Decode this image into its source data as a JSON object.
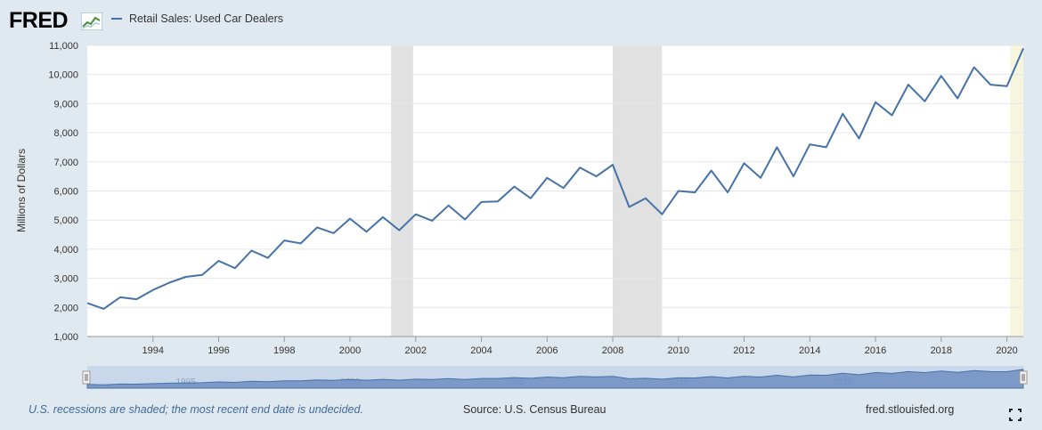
{
  "logo": {
    "text": "FRED"
  },
  "legend": {
    "series_label": "Retail Sales: Used Car Dealers"
  },
  "footer": {
    "note": "U.S. recessions are shaded; the most recent end date is undecided.",
    "source": "Source: U.S. Census Bureau",
    "site": "fred.stlouisfed.org"
  },
  "colors": {
    "series": "#4572a7",
    "recession": "#e1e1e1",
    "current_recession": "#f6f6de",
    "background": "#e1e9f0"
  },
  "chart_data": {
    "type": "line",
    "title": "",
    "xlabel": "",
    "ylabel": "Millions of Dollars",
    "xlim": [
      1992.0,
      2020.5
    ],
    "ylim": [
      1000,
      11000
    ],
    "yticks": [
      1000,
      2000,
      3000,
      4000,
      5000,
      6000,
      7000,
      8000,
      9000,
      10000,
      11000
    ],
    "ytick_labels": [
      "1,000",
      "2,000",
      "3,000",
      "4,000",
      "5,000",
      "6,000",
      "7,000",
      "8,000",
      "9,000",
      "10,000",
      "11,000"
    ],
    "xticks": [
      1994,
      1996,
      1998,
      2000,
      2002,
      2004,
      2006,
      2008,
      2010,
      2012,
      2014,
      2016,
      2018,
      2020
    ],
    "xtick_labels": [
      "1994",
      "1996",
      "1998",
      "2000",
      "2002",
      "2004",
      "2006",
      "2008",
      "2010",
      "2012",
      "2014",
      "2016",
      "2018",
      "2020"
    ],
    "recessions": [
      [
        2001.25,
        2001.92
      ],
      [
        2008.0,
        2009.5
      ]
    ],
    "current_recession": [
      2020.1,
      2020.5
    ],
    "series": [
      {
        "name": "Retail Sales: Used Car Dealers",
        "x": [
          1992.0,
          1992.5,
          1993.0,
          1993.5,
          1994.0,
          1994.5,
          1995.0,
          1995.5,
          1996.0,
          1996.5,
          1997.0,
          1997.5,
          1998.0,
          1998.5,
          1999.0,
          1999.5,
          2000.0,
          2000.5,
          2001.0,
          2001.5,
          2002.0,
          2002.5,
          2003.0,
          2003.5,
          2004.0,
          2004.5,
          2005.0,
          2005.5,
          2006.0,
          2006.5,
          2007.0,
          2007.5,
          2008.0,
          2008.5,
          2009.0,
          2009.5,
          2010.0,
          2010.5,
          2011.0,
          2011.5,
          2012.0,
          2012.5,
          2013.0,
          2013.5,
          2014.0,
          2014.5,
          2015.0,
          2015.5,
          2016.0,
          2016.5,
          2017.0,
          2017.5,
          2018.0,
          2018.5,
          2019.0,
          2019.5,
          2020.0,
          2020.5
        ],
        "values": [
          2150,
          1950,
          2350,
          2280,
          2600,
          2850,
          3050,
          3120,
          3600,
          3350,
          3950,
          3700,
          4300,
          4200,
          4750,
          4550,
          5050,
          4600,
          5100,
          4650,
          5200,
          4980,
          5500,
          5020,
          5620,
          5640,
          6150,
          5750,
          6450,
          6100,
          6800,
          6500,
          6900,
          5450,
          5750,
          5200,
          6000,
          5950,
          6700,
          5950,
          6950,
          6450,
          7500,
          6500,
          7600,
          7500,
          8650,
          7800,
          9050,
          8600,
          9650,
          9080,
          9950,
          9180,
          10250,
          9650,
          9600,
          10900
        ]
      }
    ]
  },
  "navigator": {
    "tick_labels": [
      "1995",
      "2000",
      "2005",
      "2010",
      "2015"
    ],
    "tick_years": [
      1995,
      2000,
      2005,
      2010,
      2015
    ]
  }
}
